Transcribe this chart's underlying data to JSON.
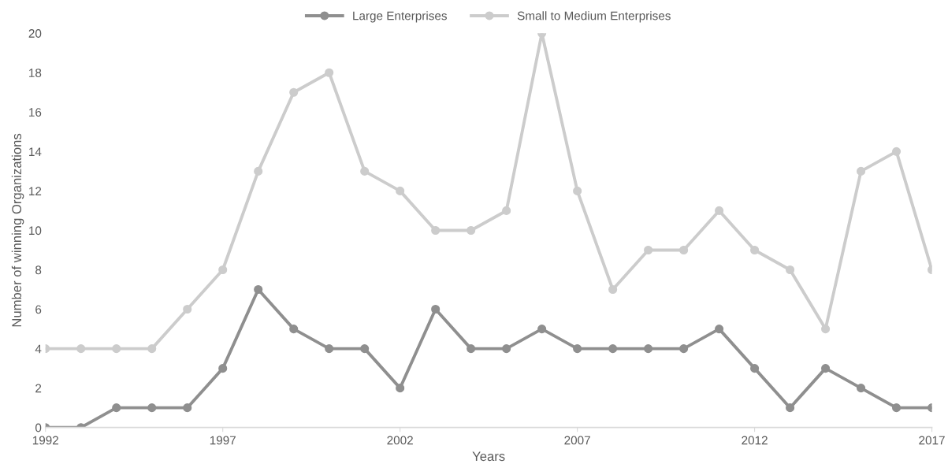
{
  "chart_data": {
    "type": "line",
    "xlabel": "Years",
    "ylabel": "Number of winning Organizations",
    "x": [
      1992,
      1993,
      1994,
      1995,
      1996,
      1997,
      1998,
      1999,
      2000,
      2001,
      2002,
      2003,
      2004,
      2005,
      2006,
      2007,
      2008,
      2009,
      2010,
      2011,
      2012,
      2013,
      2014,
      2015,
      2016,
      2017
    ],
    "series": [
      {
        "name": "Large Enterprises",
        "color": "#8f8f8f",
        "values": [
          0,
          0,
          1,
          1,
          1,
          3,
          7,
          5,
          4,
          4,
          2,
          6,
          4,
          4,
          5,
          4,
          4,
          4,
          4,
          5,
          3,
          1,
          3,
          2,
          1,
          1
        ]
      },
      {
        "name": "Small to Medium Enterprises",
        "color": "#cccccc",
        "values": [
          4,
          4,
          4,
          4,
          6,
          8,
          13,
          17,
          18,
          13,
          12,
          10,
          10,
          11,
          20,
          12,
          7,
          9,
          9,
          11,
          9,
          8,
          5,
          13,
          14,
          8
        ]
      }
    ],
    "xlim": [
      1992,
      2017
    ],
    "xticks": [
      1992,
      1997,
      2002,
      2007,
      2012,
      2017
    ],
    "ylim": [
      0,
      20
    ],
    "yticks": [
      0,
      2,
      4,
      6,
      8,
      10,
      12,
      14,
      16,
      18,
      20
    ],
    "grid": false,
    "legend": "top",
    "marker": "circle",
    "line_style": "solid"
  }
}
